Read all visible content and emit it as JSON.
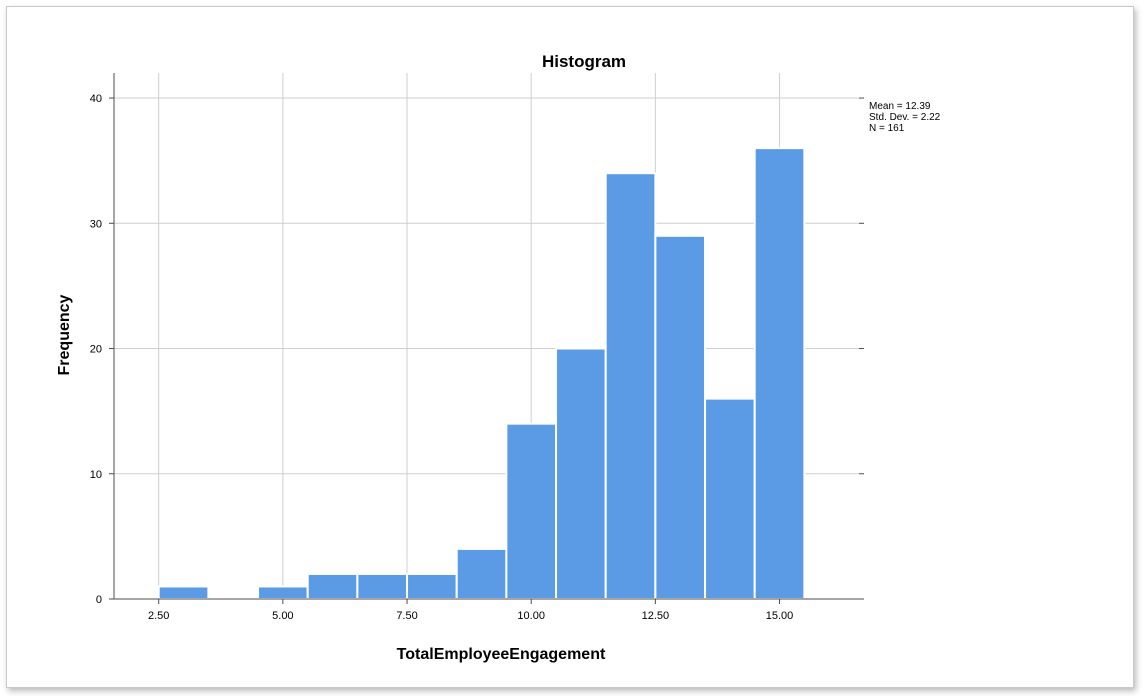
{
  "chart_data": {
    "type": "bar",
    "title": "Histogram",
    "xlabel": "TotalEmployeeEngagement",
    "ylabel": "Frequency",
    "x_ticks": [
      "2.50",
      "5.00",
      "7.50",
      "10.00",
      "12.50",
      "15.00"
    ],
    "x_tick_values": [
      2.5,
      5.0,
      7.5,
      10.0,
      12.5,
      15.0
    ],
    "y_ticks": [
      0,
      10,
      20,
      30,
      40
    ],
    "xlim": [
      1.6,
      16.6
    ],
    "ylim": [
      0,
      42
    ],
    "bin_width": 1.0,
    "bins": [
      {
        "start": 2.5,
        "end": 3.5,
        "value": 1
      },
      {
        "start": 3.5,
        "end": 4.5,
        "value": 0
      },
      {
        "start": 4.5,
        "end": 5.5,
        "value": 1
      },
      {
        "start": 5.5,
        "end": 6.5,
        "value": 2
      },
      {
        "start": 6.5,
        "end": 7.5,
        "value": 2
      },
      {
        "start": 7.5,
        "end": 8.5,
        "value": 2
      },
      {
        "start": 8.5,
        "end": 9.5,
        "value": 4
      },
      {
        "start": 9.5,
        "end": 10.5,
        "value": 14
      },
      {
        "start": 10.5,
        "end": 11.5,
        "value": 20
      },
      {
        "start": 11.5,
        "end": 12.5,
        "value": 34
      },
      {
        "start": 12.5,
        "end": 13.5,
        "value": 29
      },
      {
        "start": 13.5,
        "end": 14.5,
        "value": 16
      },
      {
        "start": 14.5,
        "end": 15.5,
        "value": 36
      }
    ],
    "grid": true,
    "legend_position": "top-right",
    "stats": [
      "Mean = 12.39",
      "Std. Dev. = 2.22",
      "N = 161"
    ],
    "colors": {
      "bar_fill": "#5b9be6",
      "bar_edge": "#ffffff",
      "grid": "#cfcfcf",
      "axis": "#4d4d4d",
      "text": "#000000"
    }
  }
}
